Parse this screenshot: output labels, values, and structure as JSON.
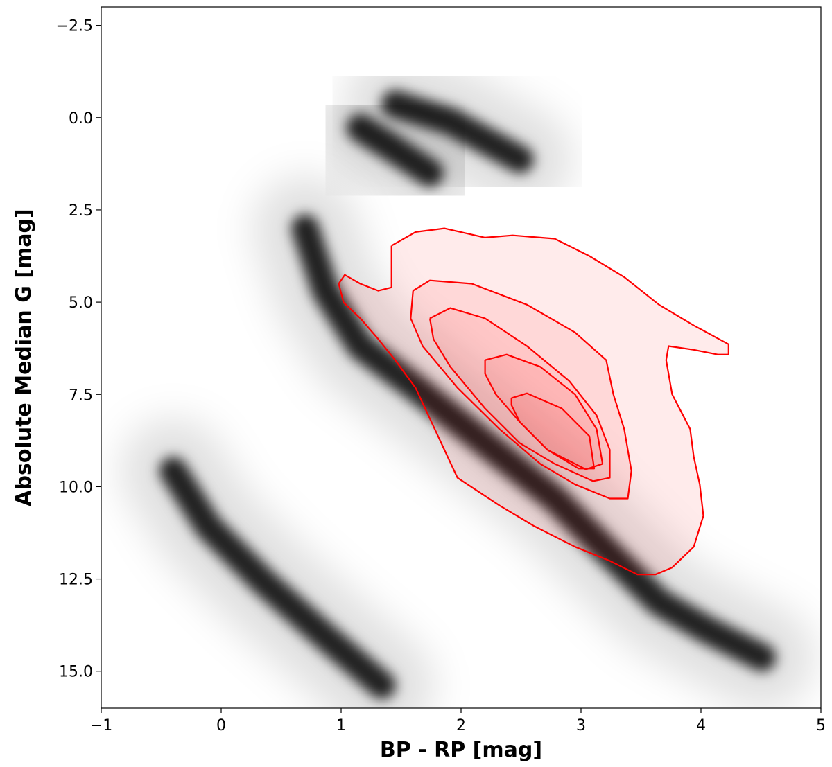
{
  "chart_data": {
    "type": "line",
    "xlabel": "BP - RP [mag]",
    "ylabel": "Absolute Median G [mag]",
    "xlim": [
      -1,
      5
    ],
    "ylim": [
      -3,
      16
    ],
    "y_inverted": true,
    "xticks": [
      {
        "value": -1,
        "label": "−1"
      },
      0,
      1,
      2,
      3,
      4,
      5
    ],
    "yticks": [
      {
        "value": -2.5,
        "label": "−2.5"
      },
      {
        "value": 0,
        "label": "0.0"
      },
      2.5,
      {
        "value": 5,
        "label": "5.0"
      },
      7.5,
      {
        "value": 10,
        "label": "10.0"
      },
      12.5,
      {
        "value": 15,
        "label": "15.0"
      }
    ],
    "series": [
      {
        "kind": "density",
        "color": "#000000",
        "x": [
          0.7,
          0.87,
          1.16,
          1.62,
          2.2,
          2.78,
          3.24,
          3.65,
          4.05,
          4.51
        ],
        "y": [
          3.0,
          4.69,
          6.19,
          7.32,
          8.82,
          10.32,
          11.82,
          13.13,
          13.88,
          14.63
        ]
      },
      {
        "kind": "density",
        "color": "#000000",
        "x": [
          1.16,
          1.39,
          1.74
        ],
        "y": [
          0.28,
          0.75,
          1.5
        ]
      },
      {
        "kind": "density",
        "color": "#000000",
        "x": [
          1.45,
          1.91,
          2.49
        ],
        "y": [
          -0.37,
          0.1,
          1.13
        ]
      },
      {
        "kind": "density",
        "color": "#000000",
        "x": [
          -0.4,
          -0.11,
          0.35,
          0.87,
          1.34
        ],
        "y": [
          9.57,
          11.07,
          12.57,
          14.07,
          15.38
        ]
      },
      {
        "kind": "contour",
        "color": "#ff0000",
        "x": [
          1.42,
          1.62,
          1.86,
          2.2,
          2.43,
          2.78,
          3.07,
          3.36,
          3.65,
          3.94,
          4.23,
          4.23,
          4.14,
          3.94,
          3.73,
          3.71,
          3.76,
          3.91,
          3.94,
          3.99,
          4.02,
          3.94,
          3.76,
          3.62,
          3.47,
          3.24,
          2.95,
          2.61,
          2.32,
          1.97,
          1.62,
          1.45,
          1.31,
          1.16,
          1.02,
          0.98,
          1.03,
          1.16,
          1.31,
          1.42,
          1.42
        ],
        "y": [
          3.47,
          3.1,
          3.0,
          3.25,
          3.19,
          3.28,
          3.75,
          4.32,
          5.07,
          5.63,
          6.14,
          6.42,
          6.42,
          6.29,
          6.19,
          6.57,
          7.5,
          8.44,
          9.19,
          9.94,
          10.79,
          11.63,
          12.19,
          12.38,
          12.38,
          12.01,
          11.63,
          11.07,
          10.51,
          9.76,
          7.32,
          6.57,
          6.0,
          5.44,
          5.01,
          4.5,
          4.26,
          4.5,
          4.69,
          4.6,
          3.47
        ]
      },
      {
        "kind": "contour",
        "color": "#ff0000",
        "x": [
          1.6,
          1.74,
          2.09,
          2.55,
          2.95,
          3.21,
          3.27,
          3.36,
          3.42,
          3.39,
          3.24,
          2.95,
          2.66,
          2.32,
          1.97,
          1.68,
          1.58,
          1.6
        ],
        "y": [
          4.69,
          4.41,
          4.5,
          5.07,
          5.82,
          6.57,
          7.5,
          8.44,
          9.57,
          10.32,
          10.32,
          9.94,
          9.38,
          8.44,
          7.32,
          6.19,
          5.44,
          4.69
        ]
      },
      {
        "kind": "contour",
        "color": "#ff0000",
        "x": [
          1.74,
          1.91,
          2.2,
          2.55,
          2.9,
          3.13,
          3.24,
          3.24,
          3.1,
          2.78,
          2.49,
          2.2,
          1.91,
          1.77,
          1.74
        ],
        "y": [
          5.44,
          5.16,
          5.44,
          6.19,
          7.13,
          8.07,
          9.0,
          9.76,
          9.85,
          9.38,
          8.82,
          7.88,
          6.75,
          6.0,
          5.44
        ]
      },
      {
        "kind": "contour",
        "color": "#ff0000",
        "x": [
          2.2,
          2.38,
          2.66,
          2.95,
          3.13,
          3.18,
          3.04,
          2.72,
          2.49,
          2.29,
          2.2,
          2.2
        ],
        "y": [
          6.57,
          6.42,
          6.75,
          7.5,
          8.44,
          9.38,
          9.53,
          9.0,
          8.25,
          7.5,
          6.94,
          6.57
        ]
      },
      {
        "kind": "contour",
        "color": "#ff0000",
        "x": [
          2.42,
          2.55,
          2.84,
          3.07,
          3.11,
          2.98,
          2.72,
          2.49,
          2.42,
          2.42
        ],
        "y": [
          7.6,
          7.47,
          7.88,
          8.63,
          9.51,
          9.51,
          9.0,
          8.25,
          7.79,
          7.6
        ]
      }
    ]
  }
}
